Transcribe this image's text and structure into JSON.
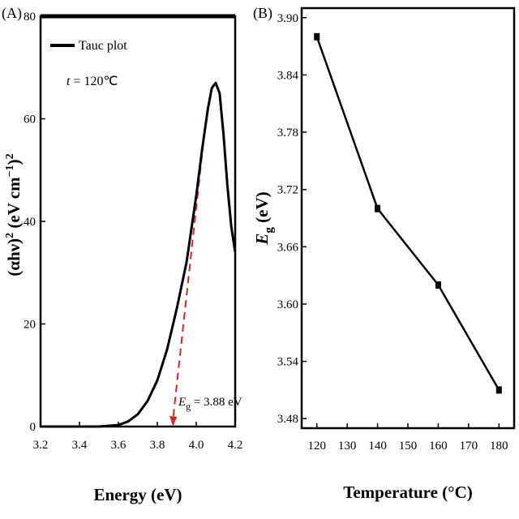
{
  "panels": {
    "a": "(A)",
    "b": "(B)"
  },
  "chart_data": [
    {
      "type": "line",
      "panel": "(A)",
      "xlabel": "Energy (eV)",
      "ylabel_parts": [
        "(αhν)",
        "2",
        " (eV cm",
        "−1",
        ")",
        "2"
      ],
      "xlim": [
        3.2,
        4.2
      ],
      "ylim": [
        0,
        80
      ],
      "xticks": [
        3.2,
        3.4,
        3.6,
        3.8,
        4.0,
        4.2
      ],
      "xtick_labels": [
        "3.2",
        "3.4",
        "3.6",
        "3.8",
        "4.0",
        "4.2"
      ],
      "yticks": [
        0,
        20,
        40,
        60,
        80
      ],
      "ytick_labels": [
        "0",
        "20",
        "40",
        "60",
        "80"
      ],
      "legend": {
        "label": "Tauc plot",
        "position": "top-left"
      },
      "condition": {
        "var": "t",
        "value": " = 120℃"
      },
      "series": [
        {
          "name": "Tauc plot",
          "color": "#000000",
          "x": [
            3.2,
            3.5,
            3.6,
            3.65,
            3.7,
            3.75,
            3.8,
            3.85,
            3.9,
            3.95,
            4.0,
            4.03,
            4.06,
            4.08,
            4.1,
            4.12,
            4.14,
            4.16,
            4.18,
            4.2
          ],
          "y": [
            0,
            0,
            0.3,
            1,
            2.4,
            5,
            9,
            15,
            23,
            32,
            45,
            54,
            62,
            66,
            67,
            65,
            57,
            47,
            39,
            34
          ]
        }
      ],
      "fit_line": {
        "color": "#d62728",
        "x": [
          3.88,
          4.05
        ],
        "y": [
          0,
          60
        ]
      },
      "annotation": {
        "symbol": "E",
        "sub": "g",
        "value": " = 3.88 eV",
        "x": 3.88
      }
    },
    {
      "type": "line",
      "panel": "(B)",
      "xlabel": "Temperature (°C)",
      "ylabel_parts": [
        "E",
        "g",
        " (eV)"
      ],
      "xlim": [
        115,
        185
      ],
      "ylim": [
        3.47,
        3.91
      ],
      "xticks": [
        120,
        130,
        140,
        150,
        160,
        170,
        180
      ],
      "xtick_labels": [
        "120",
        "130",
        "140",
        "150",
        "160",
        "170",
        "180"
      ],
      "yticks": [
        3.48,
        3.54,
        3.6,
        3.66,
        3.72,
        3.78,
        3.84,
        3.9
      ],
      "ytick_labels": [
        "3.48",
        "3.54",
        "3.60",
        "3.66",
        "3.72",
        "3.78",
        "3.84",
        "3.90"
      ],
      "series": [
        {
          "color": "#000000",
          "x": [
            120,
            140,
            160,
            180
          ],
          "y": [
            3.88,
            3.7,
            3.62,
            3.51
          ]
        }
      ]
    }
  ]
}
